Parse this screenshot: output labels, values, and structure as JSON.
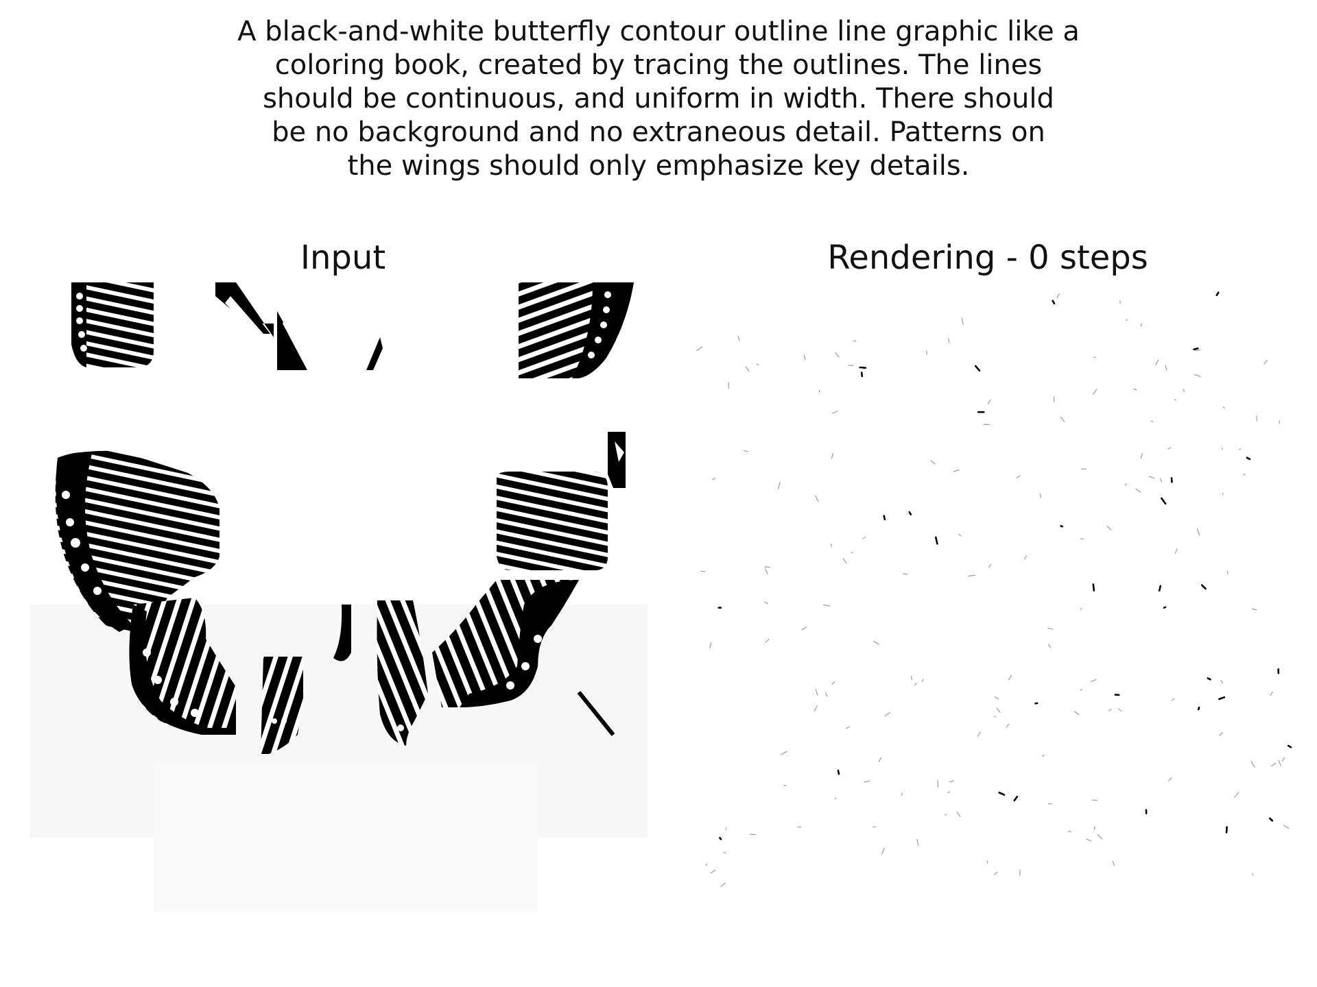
{
  "prompt": {
    "lines": [
      "A black-and-white butterfly contour outline line graphic like a",
      "coloring book, created by tracing the outlines. The lines",
      "should be continuous, and uniform in width. There should",
      "be no background and no extraneous detail. Patterns on",
      "the wings should only emphasize key details."
    ]
  },
  "panels": {
    "input": {
      "title": "Input"
    },
    "rendering": {
      "title": "Rendering - 0 steps"
    }
  },
  "colors": {
    "ink": "#000000",
    "paper": "#ffffff",
    "speck": "#444444"
  }
}
